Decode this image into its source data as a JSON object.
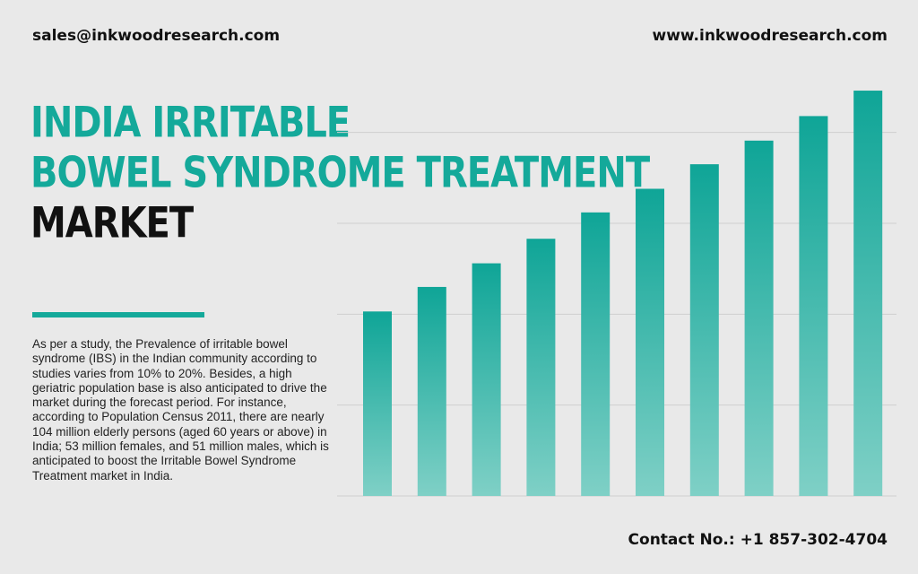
{
  "header": {
    "email": "sales@inkwoodresearch.com",
    "website": "www.inkwoodresearch.com"
  },
  "title": {
    "line1": "INDIA IRRITABLE",
    "line2": "BOWEL SYNDROME TREATMENT",
    "line3": "MARKET"
  },
  "description": "As per a study, the Prevalence of irritable bowel syndrome (IBS) in the Indian community according to studies varies from 10% to 20%. Besides, a high geriatric population base is also anticipated to drive the market during the forecast period. For instance, according to Population Census 2011, there are nearly 104 million elderly persons (aged 60 years or above) in India; 53 million females, and 51 million males, which is anticipated to boost the Irritable Bowel Syndrome Treatment market in India.",
  "footer": {
    "contact": "Contact No.: +1 857-302-4704"
  },
  "colors": {
    "accent": "#14a99a",
    "bar_top": "#0fa597",
    "bar_bottom": "#7fd0c6",
    "background": "#e9e9e9",
    "gridline": "#cfcfcf"
  },
  "chart_data": {
    "type": "bar",
    "values": [
      2.03,
      2.3,
      2.56,
      2.83,
      3.12,
      3.38,
      3.65,
      3.91,
      4.18,
      4.46
    ],
    "ylim": [
      0,
      4.5
    ],
    "grid": true,
    "legend": "none"
  }
}
